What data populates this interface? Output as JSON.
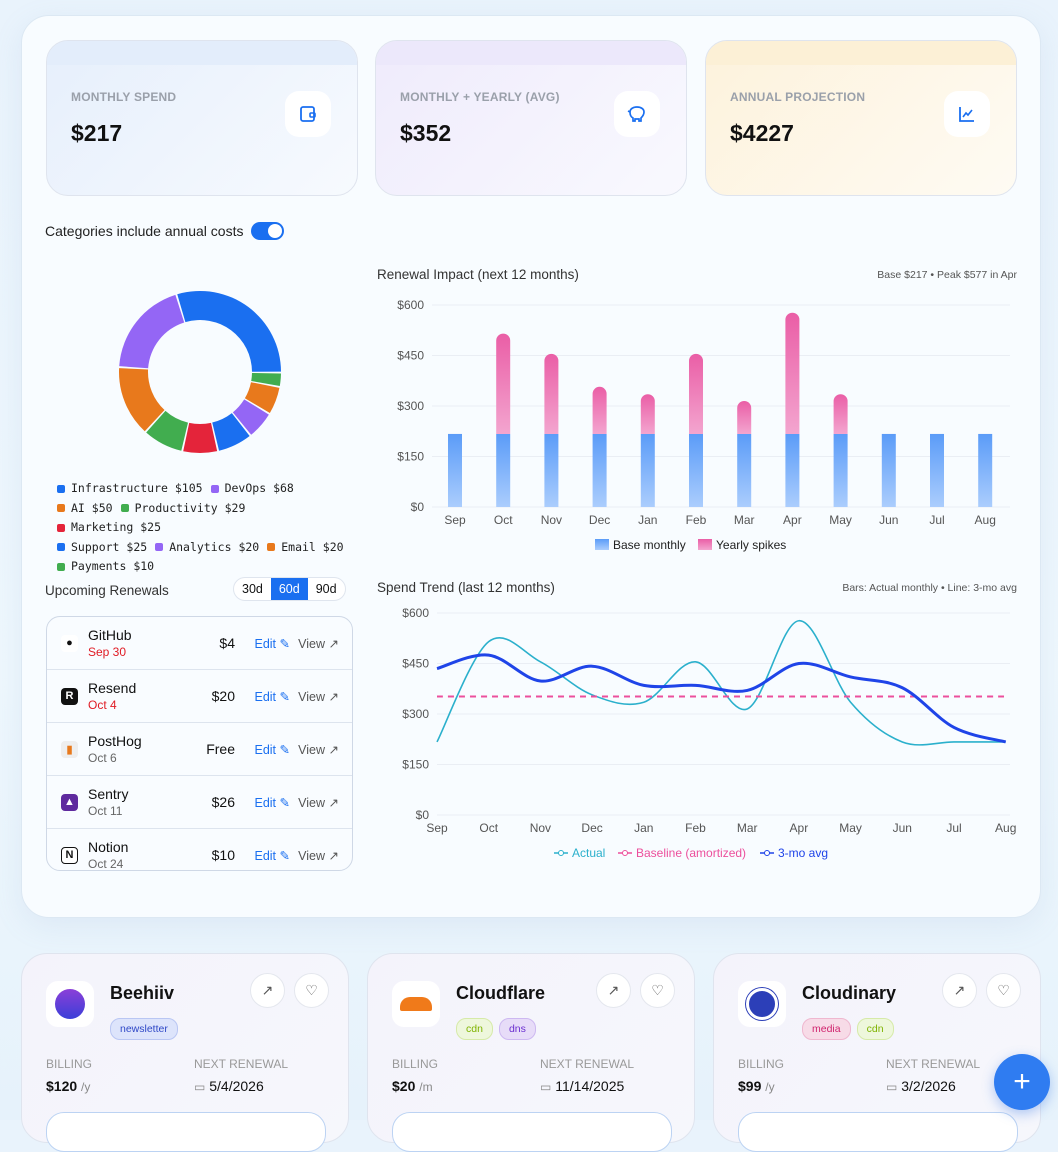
{
  "stats": [
    {
      "label": "MONTHLY SPEND",
      "value": "$217",
      "icon": "wallet-icon",
      "tint": "#e3eefc"
    },
    {
      "label": "MONTHLY + YEARLY (AVG)",
      "value": "$352",
      "icon": "piggy-bank-icon",
      "tint": "#ede9fb"
    },
    {
      "label": "ANNUAL PROJECTION",
      "value": "$4227",
      "icon": "line-chart-icon",
      "tint": "#fdf1d8"
    }
  ],
  "toggle": {
    "label": "Categories include annual costs",
    "on": true
  },
  "categories": [
    {
      "name": "Infrastructure",
      "value": 105,
      "label": "$105",
      "color": "#1a6ff0"
    },
    {
      "name": "DevOps",
      "value": 68,
      "label": "$68",
      "color": "#9466f5"
    },
    {
      "name": "AI",
      "value": 50,
      "label": "$50",
      "color": "#e8791c"
    },
    {
      "name": "Productivity",
      "value": 29,
      "label": "$29",
      "color": "#41ad4f"
    },
    {
      "name": "Marketing",
      "value": 25,
      "label": "$25",
      "color": "#e4243a"
    },
    {
      "name": "Support",
      "value": 25,
      "label": "$25",
      "color": "#1a6ff0"
    },
    {
      "name": "Analytics",
      "value": 20,
      "label": "$20",
      "color": "#9466f5"
    },
    {
      "name": "Email",
      "value": 20,
      "label": "$20",
      "color": "#e8791c"
    },
    {
      "name": "Payments",
      "value": 10,
      "label": "$10",
      "color": "#41ad4f"
    }
  ],
  "chart_data": [
    {
      "type": "bar",
      "title": "Renewal Impact (next 12 months)",
      "subtitle": "Base $217 • Peak $577 in Apr",
      "categories": [
        "Sep",
        "Oct",
        "Nov",
        "Dec",
        "Jan",
        "Feb",
        "Mar",
        "Apr",
        "May",
        "Jun",
        "Jul",
        "Aug"
      ],
      "yticks": [
        "$0",
        "$150",
        "$300",
        "$450",
        "$600"
      ],
      "ylim": [
        0,
        600
      ],
      "grid": true,
      "legend": "bottom",
      "stacked": true,
      "series": [
        {
          "name": "Base monthly",
          "color": "#5b9cf8",
          "values": [
            217,
            217,
            217,
            217,
            217,
            217,
            217,
            217,
            217,
            217,
            217,
            217
          ]
        },
        {
          "name": "Yearly spikes",
          "color": "#ec5fa6",
          "values": [
            0,
            298,
            238,
            140,
            118,
            238,
            98,
            360,
            118,
            0,
            0,
            0
          ]
        }
      ]
    },
    {
      "type": "line",
      "title": "Spend Trend (last 12 months)",
      "subtitle": "Bars: Actual monthly • Line: 3-mo avg",
      "categories": [
        "Sep",
        "Oct",
        "Nov",
        "Dec",
        "Jan",
        "Feb",
        "Mar",
        "Apr",
        "May",
        "Jun",
        "Jul",
        "Aug"
      ],
      "yticks": [
        "$0",
        "$150",
        "$300",
        "$450",
        "$600"
      ],
      "ylim": [
        0,
        600
      ],
      "grid": true,
      "legend": "bottom",
      "series": [
        {
          "name": "Actual",
          "color": "#2bb0cc",
          "values": [
            217,
            515,
            455,
            357,
            335,
            455,
            315,
            577,
            335,
            217,
            217,
            217
          ]
        },
        {
          "name": "Baseline (amortized)",
          "color": "#ec4f9c",
          "dashed": true,
          "values": [
            352,
            352,
            352,
            352,
            352,
            352,
            352,
            352,
            352,
            352,
            352,
            352
          ]
        },
        {
          "name": "3-mo avg",
          "color": "#1f44e8",
          "values": [
            435,
            475,
            398,
            442,
            385,
            385,
            370,
            450,
            410,
            378,
            260,
            217
          ]
        }
      ]
    }
  ],
  "renewals": {
    "title": "Upcoming Renewals",
    "ranges": [
      "30d",
      "60d",
      "90d"
    ],
    "active_range": "60d",
    "edit_label": "Edit",
    "view_label": "View",
    "items": [
      {
        "name": "GitHub",
        "date": "Sep 30",
        "price": "$4",
        "urgent": true,
        "logo": "github-icon"
      },
      {
        "name": "Resend",
        "date": "Oct 4",
        "price": "$20",
        "urgent": true,
        "logo": "resend-icon"
      },
      {
        "name": "PostHog",
        "date": "Oct 6",
        "price": "Free",
        "urgent": false,
        "logo": "posthog-icon"
      },
      {
        "name": "Sentry",
        "date": "Oct 11",
        "price": "$26",
        "urgent": false,
        "logo": "sentry-icon"
      },
      {
        "name": "Notion",
        "date": "Oct 24",
        "price": "$10",
        "urgent": false,
        "logo": "notion-icon"
      }
    ]
  },
  "subscriptions": {
    "billing_label": "BILLING",
    "renewal_label": "NEXT RENEWAL",
    "items": [
      {
        "name": "Beehiiv",
        "tags": [
          "newsletter"
        ],
        "price": "$120",
        "period": "/y",
        "renewal": "5/4/2026"
      },
      {
        "name": "Cloudflare",
        "tags": [
          "cdn",
          "dns"
        ],
        "price": "$20",
        "period": "/m",
        "renewal": "11/14/2025"
      },
      {
        "name": "Cloudinary",
        "tags": [
          "media",
          "cdn"
        ],
        "price": "$99",
        "period": "/y",
        "renewal": "3/2/2026"
      }
    ]
  },
  "fab_label": "+"
}
